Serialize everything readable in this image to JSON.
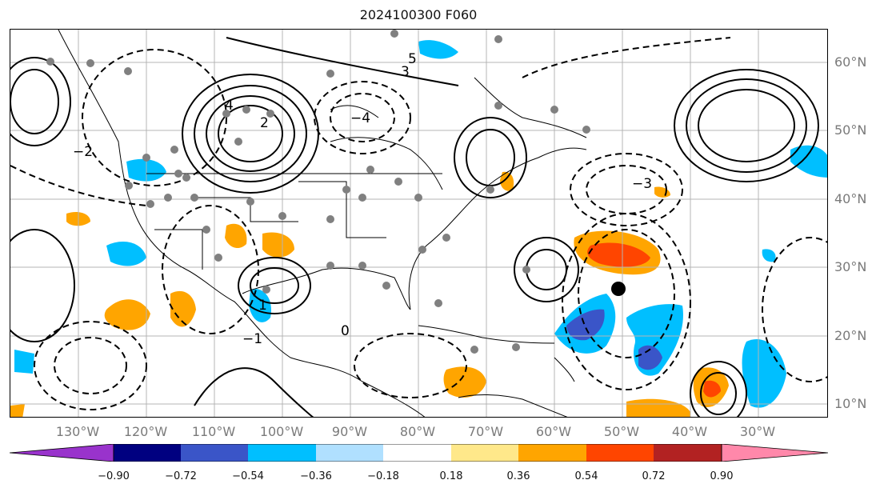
{
  "title": "2024100300 F060",
  "lat_labels": [
    "60°N",
    "50°N",
    "40°N",
    "30°N",
    "20°N",
    "10°N"
  ],
  "lon_labels": [
    "130°W",
    "120°W",
    "110°W",
    "100°W",
    "90°W",
    "80°W",
    "70°W",
    "60°W",
    "50°W",
    "40°W",
    "30°W"
  ],
  "colorbar": {
    "labels": [
      "−0.90",
      "−0.72",
      "−0.54",
      "−0.36",
      "−0.18",
      "0.18",
      "0.36",
      "0.54",
      "0.72",
      "0.90"
    ],
    "colors": [
      "#9933cc",
      "#000080",
      "#3a55c8",
      "#00bfff",
      "#b0e0ff",
      "#ffffff",
      "#ffe88a",
      "#ffa500",
      "#ff4500",
      "#b22222",
      "#ff88aa"
    ]
  },
  "contour_labels": [
    "5",
    "4",
    "3",
    "2",
    "1",
    "0",
    "−1",
    "−2",
    "−3",
    "−4"
  ],
  "colors": {
    "land_line": "#000000",
    "grid": "#b4b4b4",
    "station": "#808080",
    "marker": "#000000"
  }
}
